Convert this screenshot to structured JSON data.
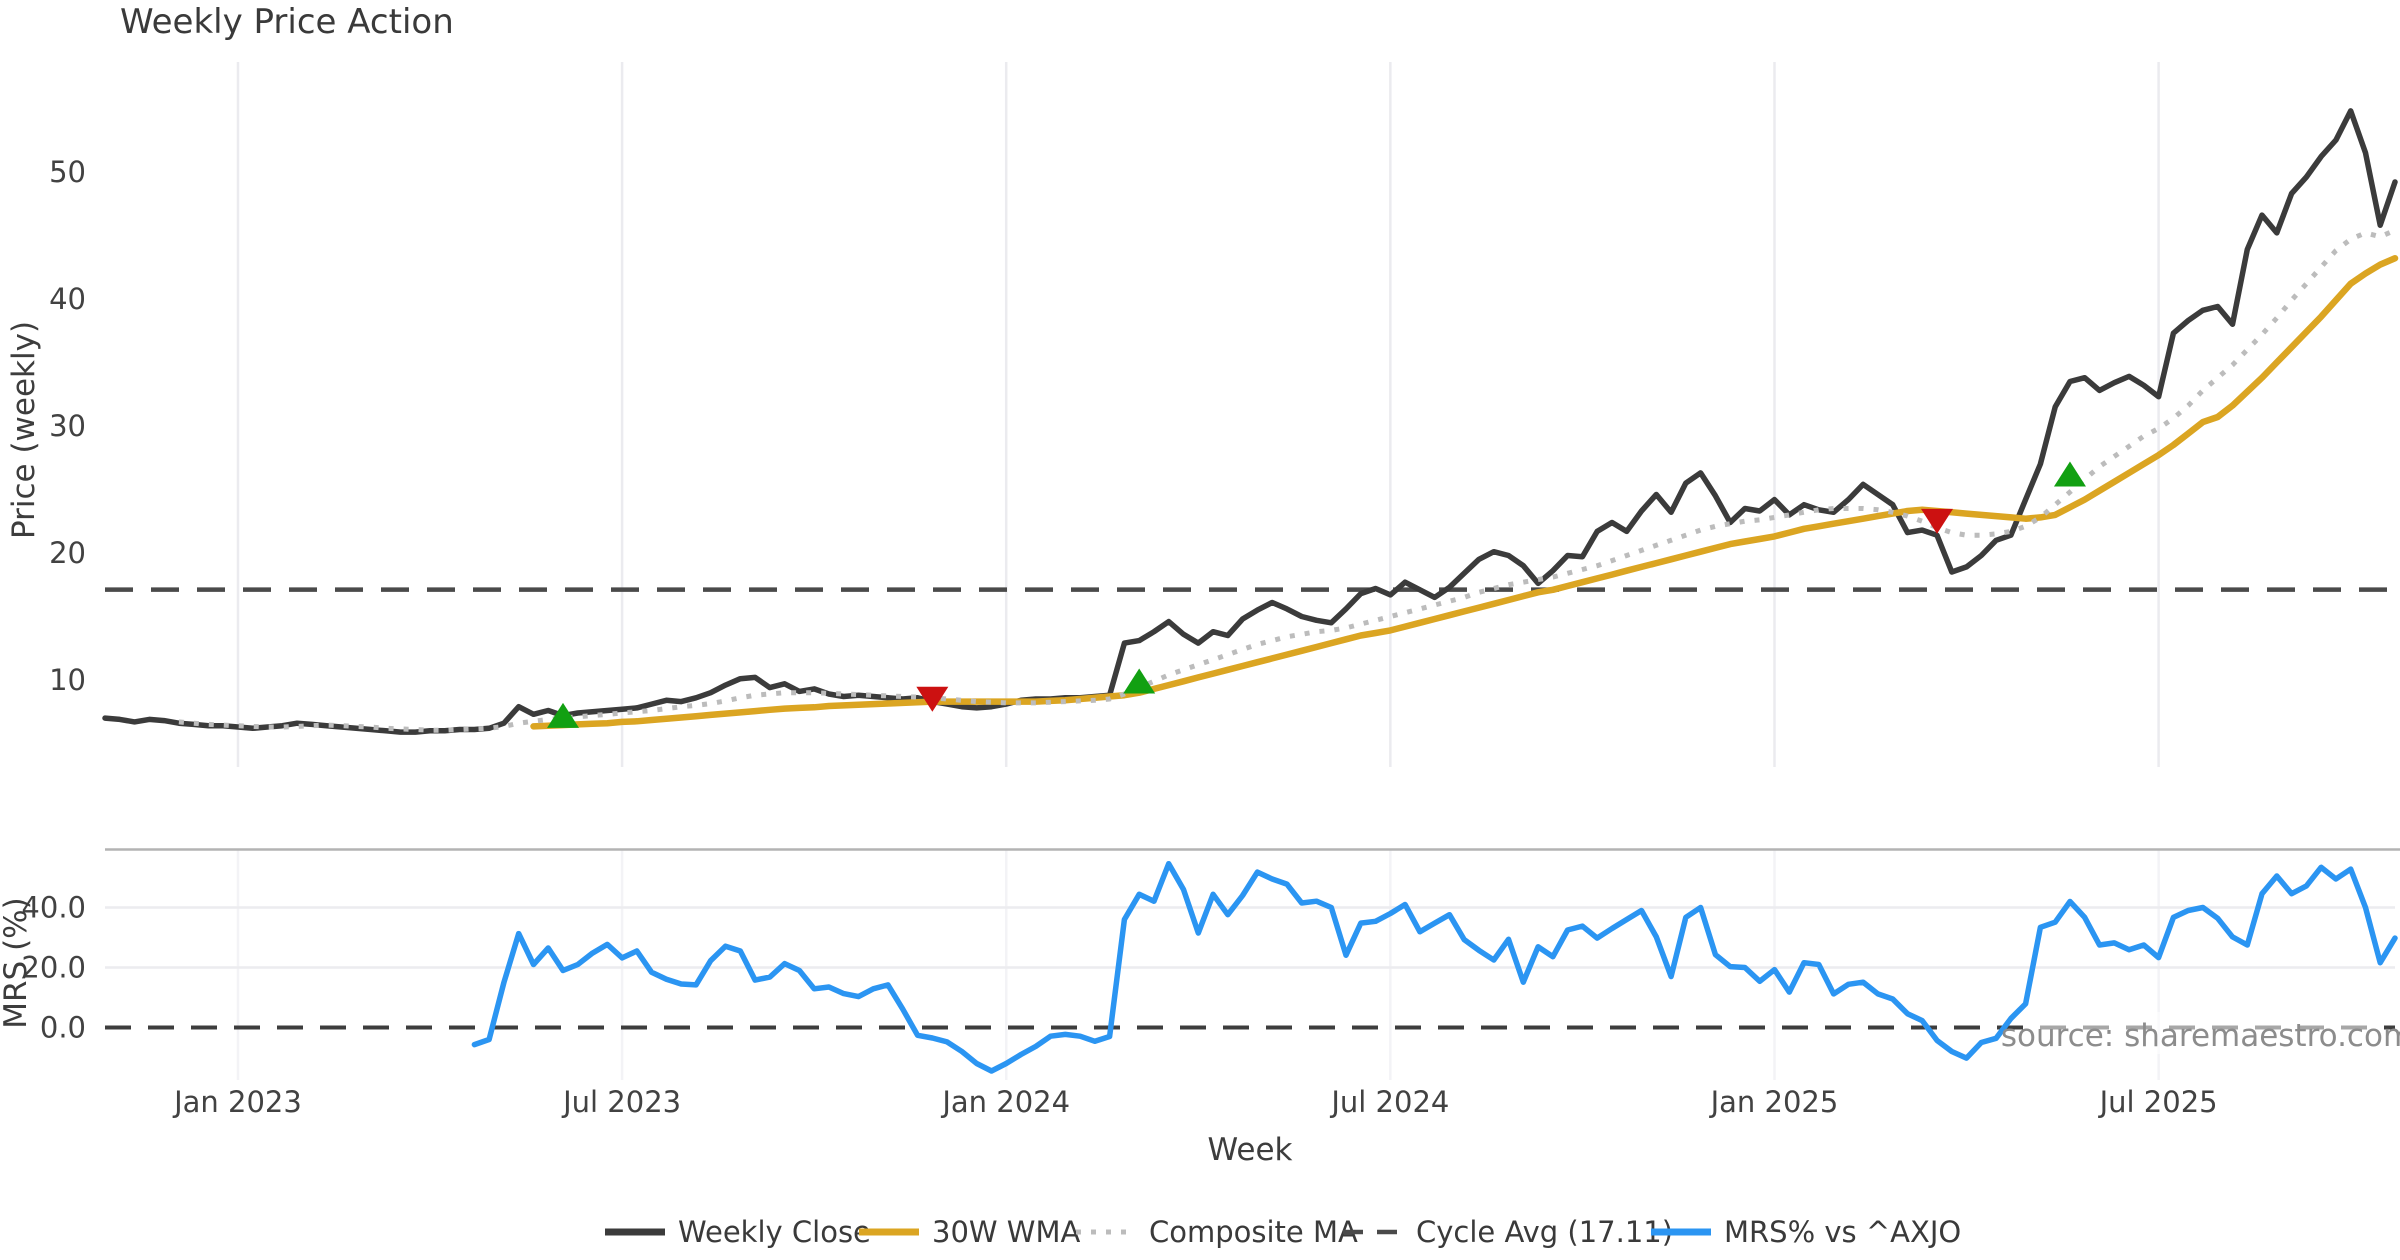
{
  "title": "Weekly Price Action",
  "source_text": "source: sharemaestro.com",
  "axes": {
    "price": {
      "label": "Price (weekly)",
      "tick_labels": [
        "10",
        "20",
        "30",
        "40",
        "50"
      ],
      "tick_values": [
        10,
        20,
        30,
        40,
        50
      ],
      "ylim": [
        3.15,
        58.65
      ]
    },
    "mrs": {
      "label": "MRS (%)",
      "tick_labels": [
        "0.0",
        "20.0",
        "40.0"
      ],
      "tick_values": [
        0,
        20,
        40
      ],
      "ylim": [
        -17.5,
        59.5
      ]
    },
    "x": {
      "label": "Week",
      "tick_labels": [
        "Jan 2023",
        "Jul 2023",
        "Jan 2024",
        "Jul 2024",
        "Jan 2025",
        "Jul 2025"
      ],
      "tick_indices": [
        9,
        35,
        61,
        87,
        113,
        139
      ]
    }
  },
  "legend": {
    "items": [
      {
        "label": "Weekly Close",
        "color": "#3b3b3b",
        "style": "solid"
      },
      {
        "label": "30W WMA",
        "color": "#dba522",
        "style": "solid"
      },
      {
        "label": "Composite MA",
        "color": "#bcbcbc",
        "style": "dotted"
      },
      {
        "label": "Cycle Avg (17.11)",
        "color": "#4a4a4a",
        "style": "dashed"
      },
      {
        "label": "MRS% vs ^AXJO",
        "color": "#2b95f2",
        "style": "solid"
      }
    ]
  },
  "colors": {
    "weekly_close": "#3b3b3b",
    "wma_30w": "#dba522",
    "composite_ma": "#bcbcbc",
    "cycle_avg": "#4a4a4a",
    "mrs": "#2b95f2",
    "buy_marker": "#12a012",
    "sell_marker": "#cc1111",
    "grid": "#ebebef",
    "panel_spine": "#b3b3b3",
    "zero_dash": "#3d3d3d",
    "source": "#8c8c8c"
  },
  "chart_data": {
    "type": "line",
    "title": "Weekly Price Action",
    "xlabel": "Week",
    "ylabel_top": "Price (weekly)",
    "ylabel_bottom": "MRS (%)",
    "x_is_weekly_index": true,
    "n_points": 156,
    "x_tick_labels": [
      "Jan 2023",
      "Jul 2023",
      "Jan 2024",
      "Jul 2024",
      "Jan 2025",
      "Jul 2025"
    ],
    "x_tick_indices": [
      9,
      35,
      61,
      87,
      113,
      139
    ],
    "cycle_avg": 17.11,
    "series": [
      {
        "name": "Weekly Close",
        "panel": "top",
        "values": [
          7.0,
          6.9,
          6.7,
          6.9,
          6.8,
          6.6,
          6.5,
          6.4,
          6.4,
          6.3,
          6.2,
          6.3,
          6.4,
          6.6,
          6.5,
          6.4,
          6.3,
          6.2,
          6.1,
          6.0,
          5.9,
          5.9,
          6.0,
          6.0,
          6.1,
          6.1,
          6.2,
          6.6,
          7.9,
          7.3,
          7.6,
          7.2,
          7.4,
          7.5,
          7.6,
          7.7,
          7.8,
          8.1,
          8.4,
          8.3,
          8.6,
          9.0,
          9.6,
          10.1,
          10.2,
          9.4,
          9.7,
          9.1,
          9.3,
          8.9,
          8.7,
          8.8,
          8.7,
          8.6,
          8.5,
          8.6,
          8.3,
          8.1,
          7.9,
          7.8,
          7.9,
          8.1,
          8.4,
          8.5,
          8.5,
          8.6,
          8.6,
          8.7,
          8.8,
          12.9,
          13.1,
          13.8,
          14.6,
          13.6,
          12.9,
          13.8,
          13.5,
          14.8,
          15.5,
          16.1,
          15.6,
          15.0,
          14.7,
          14.5,
          15.6,
          16.8,
          17.2,
          16.7,
          17.7,
          17.1,
          16.5,
          17.3,
          18.4,
          19.5,
          20.1,
          19.8,
          19.0,
          17.6,
          18.6,
          19.8,
          19.7,
          21.7,
          22.4,
          21.7,
          23.3,
          24.6,
          23.2,
          25.5,
          26.3,
          24.5,
          22.4,
          23.5,
          23.3,
          24.2,
          23.0,
          23.8,
          23.4,
          23.2,
          24.2,
          25.4,
          24.6,
          23.8,
          21.6,
          21.8,
          21.4,
          18.5,
          18.9,
          19.8,
          21.0,
          21.4,
          24.2,
          27.0,
          31.5,
          33.5,
          33.8,
          32.8,
          33.4,
          33.9,
          33.2,
          32.3,
          37.3,
          38.3,
          39.1,
          39.4,
          38.0,
          43.9,
          46.6,
          45.2,
          48.3,
          49.6,
          51.2,
          52.5,
          54.8,
          51.5,
          45.8,
          49.2
        ]
      },
      {
        "name": "30W WMA",
        "panel": "top",
        "values": [
          null,
          null,
          null,
          null,
          null,
          null,
          null,
          null,
          null,
          null,
          null,
          null,
          null,
          null,
          null,
          null,
          null,
          null,
          null,
          null,
          null,
          null,
          null,
          null,
          null,
          null,
          null,
          null,
          null,
          6.35,
          6.4,
          6.45,
          6.5,
          6.55,
          6.6,
          6.7,
          6.75,
          6.85,
          6.95,
          7.05,
          7.15,
          7.25,
          7.35,
          7.45,
          7.55,
          7.65,
          7.75,
          7.8,
          7.85,
          7.95,
          8.0,
          8.05,
          8.1,
          8.15,
          8.2,
          8.25,
          8.3,
          8.3,
          8.3,
          8.3,
          8.3,
          8.3,
          8.3,
          8.3,
          8.35,
          8.4,
          8.5,
          8.6,
          8.7,
          8.8,
          9.0,
          9.3,
          9.6,
          9.9,
          10.2,
          10.5,
          10.8,
          11.1,
          11.4,
          11.7,
          12.0,
          12.3,
          12.6,
          12.9,
          13.2,
          13.5,
          13.7,
          13.9,
          14.2,
          14.5,
          14.8,
          15.1,
          15.4,
          15.7,
          16.0,
          16.3,
          16.6,
          16.9,
          17.1,
          17.4,
          17.7,
          18.0,
          18.3,
          18.6,
          18.9,
          19.2,
          19.5,
          19.8,
          20.1,
          20.4,
          20.7,
          20.9,
          21.1,
          21.3,
          21.6,
          21.9,
          22.1,
          22.3,
          22.5,
          22.7,
          22.9,
          23.1,
          23.3,
          23.4,
          23.3,
          23.2,
          23.1,
          23.0,
          22.9,
          22.8,
          22.7,
          22.8,
          23.0,
          23.6,
          24.2,
          24.9,
          25.6,
          26.3,
          27.0,
          27.7,
          28.5,
          29.4,
          30.3,
          30.7,
          31.6,
          32.7,
          33.8,
          35.0,
          36.2,
          37.4,
          38.6,
          39.9,
          41.2,
          42.0,
          42.7,
          43.2
        ]
      },
      {
        "name": "Composite MA",
        "panel": "top",
        "values": [
          null,
          null,
          null,
          null,
          null,
          6.7,
          6.6,
          6.5,
          6.45,
          6.4,
          6.35,
          6.3,
          6.3,
          6.35,
          6.4,
          6.45,
          6.4,
          6.35,
          6.3,
          6.2,
          6.15,
          6.1,
          6.05,
          6.05,
          6.1,
          6.15,
          6.2,
          6.35,
          6.6,
          6.75,
          6.9,
          7.0,
          7.1,
          7.2,
          7.3,
          7.4,
          7.5,
          7.6,
          7.75,
          7.9,
          8.0,
          8.15,
          8.35,
          8.6,
          8.8,
          8.9,
          9.0,
          9.0,
          9.0,
          8.95,
          8.9,
          8.85,
          8.8,
          8.75,
          8.7,
          8.65,
          8.6,
          8.5,
          8.4,
          8.3,
          8.25,
          8.2,
          8.2,
          8.2,
          8.25,
          8.3,
          8.35,
          8.4,
          8.5,
          8.9,
          9.4,
          9.9,
          10.4,
          10.8,
          11.2,
          11.6,
          12.0,
          12.4,
          12.8,
          13.1,
          13.4,
          13.6,
          13.8,
          13.9,
          14.1,
          14.4,
          14.7,
          15.0,
          15.3,
          15.6,
          15.9,
          16.2,
          16.5,
          16.9,
          17.2,
          17.5,
          17.7,
          17.9,
          18.1,
          18.4,
          18.7,
          19.0,
          19.4,
          19.8,
          20.2,
          20.6,
          21.0,
          21.4,
          21.8,
          22.1,
          22.3,
          22.5,
          22.6,
          22.8,
          23.0,
          23.2,
          23.4,
          23.5,
          23.5,
          23.5,
          23.4,
          23.2,
          22.9,
          22.5,
          22.0,
          21.6,
          21.4,
          21.4,
          21.5,
          21.7,
          22.1,
          22.8,
          23.8,
          24.8,
          25.8,
          26.8,
          27.6,
          28.4,
          29.2,
          29.8,
          30.6,
          31.6,
          32.8,
          33.8,
          34.8,
          36.0,
          37.2,
          38.5,
          39.9,
          41.2,
          42.5,
          43.8,
          44.7,
          45.2,
          44.9,
          45.4
        ]
      },
      {
        "name": "MRS% vs ^AXJO",
        "panel": "bottom",
        "values": [
          null,
          null,
          null,
          null,
          null,
          null,
          null,
          null,
          null,
          null,
          null,
          null,
          null,
          null,
          null,
          null,
          null,
          null,
          null,
          null,
          null,
          null,
          null,
          null,
          null,
          -5.7,
          -4.0,
          15.0,
          31.3,
          21.0,
          26.5,
          19.0,
          21.0,
          24.8,
          27.7,
          23.2,
          25.5,
          18.4,
          16.1,
          14.5,
          14.2,
          22.3,
          27.1,
          25.5,
          15.8,
          16.8,
          21.3,
          19.0,
          12.9,
          13.5,
          11.3,
          10.3,
          12.9,
          14.2,
          6.1,
          -2.6,
          -3.5,
          -4.8,
          -8.0,
          -12.0,
          -14.5,
          -12.0,
          -9.0,
          -6.3,
          -2.9,
          -2.3,
          -2.9,
          -4.6,
          -3.0,
          36.0,
          44.4,
          42.1,
          54.6,
          46.0,
          31.5,
          44.4,
          37.6,
          44.0,
          51.8,
          49.5,
          47.8,
          41.5,
          42.1,
          40.0,
          24.1,
          34.8,
          35.4,
          38.0,
          41.0,
          31.9,
          34.8,
          37.6,
          29.3,
          25.7,
          22.5,
          29.4,
          15.1,
          26.9,
          23.6,
          32.5,
          33.8,
          29.8,
          33.0,
          36.0,
          39.0,
          30.2,
          17.0,
          36.7,
          40.0,
          24.3,
          20.3,
          20.0,
          15.4,
          19.3,
          11.8,
          21.6,
          21.0,
          11.2,
          14.4,
          15.1,
          11.2,
          9.5,
          4.6,
          2.3,
          -4.3,
          -8.0,
          -10.2,
          -5.0,
          -3.6,
          3.0,
          7.9,
          33.4,
          35.1,
          42.0,
          36.7,
          27.5,
          28.2,
          25.9,
          27.5,
          23.3,
          36.7,
          39.0,
          40.0,
          36.4,
          30.2,
          27.5,
          44.6,
          50.5,
          44.6,
          47.2,
          53.4,
          49.5,
          52.8,
          40.0,
          21.6,
          29.8
        ]
      }
    ],
    "markers": {
      "buy": [
        {
          "index": 31,
          "value": 7.1
        },
        {
          "index": 70,
          "value": 9.8
        },
        {
          "index": 133,
          "value": 26.1
        }
      ],
      "sell": [
        {
          "index": 56,
          "value": 8.6
        },
        {
          "index": 124,
          "value": 22.6
        }
      ]
    },
    "legend_entries": [
      "Weekly Close",
      "30W WMA",
      "Composite MA",
      "Cycle Avg (17.11)",
      "MRS% vs ^AXJO"
    ],
    "grid": "vertical-at-x-ticks; horizontal at 20/40 in bottom panel",
    "legend_position": "bottom-center"
  }
}
